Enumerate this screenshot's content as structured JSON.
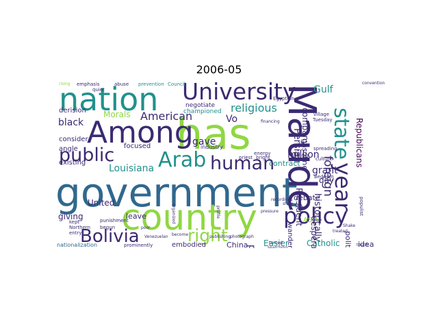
{
  "title": "2006-05",
  "colors": {
    "dark_purple": "#440154",
    "indigo": "#3b2a72",
    "blue": "#31688e",
    "teal": "#21918c",
    "green": "#35b779",
    "lime": "#90d743",
    "yellow": "#bddf26"
  },
  "words": [
    "government",
    "country",
    "Maude",
    "has",
    "nation",
    "Among",
    "University",
    "Arab",
    "human",
    "policy",
    "public",
    "Bolivia",
    "right",
    "year",
    "state",
    "religious",
    "American",
    "Louisiana",
    "foreign",
    "million",
    "Persian",
    "black",
    "Gulf",
    "gave",
    "United",
    "giving",
    "Morals",
    "grant",
    "day",
    "proposal",
    "historically",
    "Republicans",
    "President",
    "Catholic",
    "Easier",
    "China",
    "embodied",
    "idea",
    "political",
    "desperate",
    "leave",
    "angle",
    "consider",
    "derision",
    "existing",
    "focused",
    "contract",
    "debate",
    "championed",
    "negotiate",
    "Vo",
    "gasoline",
    "company",
    "ASIA",
    "wandering",
    "nationalization",
    "emphasis",
    "abuse",
    "prevention",
    "Council",
    "Egyptian",
    "conventional",
    "industry",
    "Northern",
    "entry",
    "kept",
    "punishment",
    "begun",
    "Venezuelan",
    "religion",
    "culture",
    "Bedouin",
    "village",
    "spreading",
    "energy",
    "bright",
    "priest",
    "Tuesday",
    "populist",
    "prominently",
    "profile",
    "become",
    "poor",
    "photograph",
    "publishing",
    "quiet",
    "rising",
    "financing",
    "pressure",
    "recordings",
    "led",
    "turned",
    "touch",
    "searching",
    "organized",
    "show",
    "treated",
    "Shake"
  ]
}
